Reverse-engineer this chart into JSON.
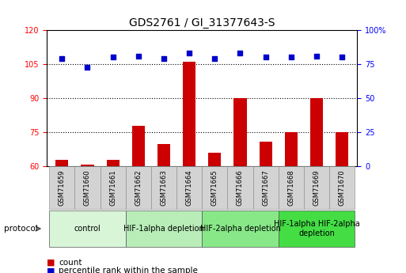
{
  "title": "GDS2761 / GI_31377643-S",
  "samples": [
    "GSM71659",
    "GSM71660",
    "GSM71661",
    "GSM71662",
    "GSM71663",
    "GSM71664",
    "GSM71665",
    "GSM71666",
    "GSM71667",
    "GSM71668",
    "GSM71669",
    "GSM71670"
  ],
  "count_values": [
    63,
    61,
    63,
    78,
    70,
    106,
    66,
    90,
    71,
    75,
    90,
    75
  ],
  "percentile_values": [
    79,
    73,
    80,
    81,
    79,
    83,
    79,
    83,
    80,
    80,
    81,
    80
  ],
  "left_ylim": [
    60,
    120
  ],
  "left_yticks": [
    60,
    75,
    90,
    105,
    120
  ],
  "right_ylim": [
    0,
    100
  ],
  "right_yticks": [
    0,
    25,
    50,
    75,
    100
  ],
  "right_yticklabels": [
    "0",
    "25",
    "50",
    "75",
    "100%"
  ],
  "hlines": [
    75,
    90,
    105
  ],
  "bar_color": "#cc0000",
  "dot_color": "#0000cc",
  "protocol_groups": [
    {
      "label": "control",
      "start": 0,
      "end": 3,
      "color": "#d8f5d8"
    },
    {
      "label": "HIF-1alpha depletion",
      "start": 3,
      "end": 6,
      "color": "#b8edb8"
    },
    {
      "label": "HIF-2alpha depletion",
      "start": 6,
      "end": 9,
      "color": "#88e888"
    },
    {
      "label": "HIF-1alpha HIF-2alpha\ndepletion",
      "start": 9,
      "end": 12,
      "color": "#44dd44"
    }
  ],
  "legend_count_label": "count",
  "legend_pct_label": "percentile rank within the sample",
  "bar_width": 0.5,
  "title_fontsize": 10,
  "tick_fontsize": 7,
  "label_fontsize": 7.5,
  "protocol_fontsize": 7
}
